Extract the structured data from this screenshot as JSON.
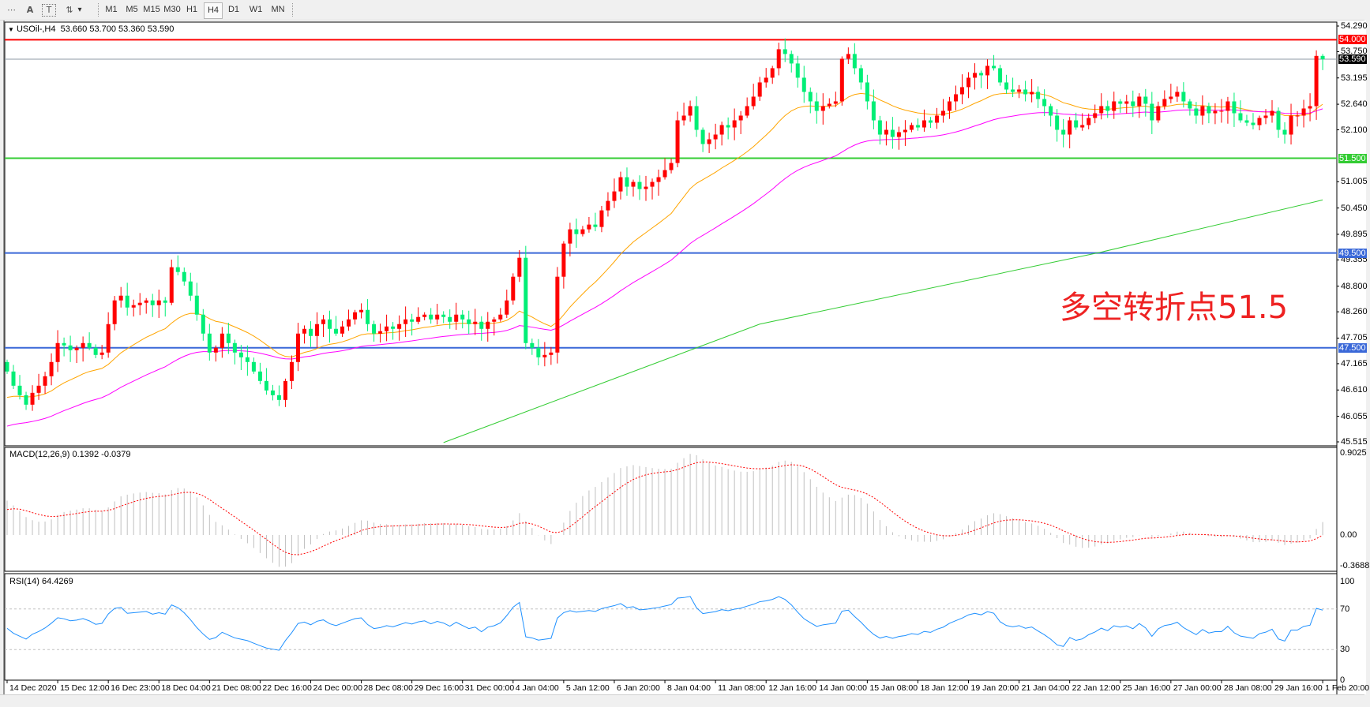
{
  "toolbar": {
    "tools": [
      {
        "name": "grid-icon",
        "glyph": "⋯"
      },
      {
        "name": "text-icon",
        "glyph": "A"
      },
      {
        "name": "text-label-icon",
        "glyph": "T"
      },
      {
        "name": "arrows-icon",
        "glyph": "⇅"
      }
    ],
    "dropdown_glyph": "▾",
    "timeframes": [
      "M1",
      "M5",
      "M15",
      "M30",
      "H1",
      "H4",
      "D1",
      "W1",
      "MN"
    ],
    "active_timeframe": "H4"
  },
  "chart": {
    "menu_glyph": "▼",
    "symbol": "USOil-,H4",
    "ohlc_text": "53.660 53.700 53.360 53.590",
    "annotation": "多空转折点51.5"
  },
  "chart_data": [
    {
      "type": "candlestick",
      "symbol": "USOil-",
      "timeframe": "H4",
      "last_bar": {
        "open": 53.66,
        "high": 53.7,
        "low": 53.36,
        "close": 53.59
      },
      "first_open": 47.2,
      "close": [
        47.0,
        46.7,
        46.5,
        46.3,
        46.55,
        46.7,
        46.9,
        47.2,
        47.6,
        47.55,
        47.45,
        47.5,
        47.6,
        47.5,
        47.35,
        47.4,
        48.0,
        48.5,
        48.6,
        48.35,
        48.4,
        48.45,
        48.5,
        48.4,
        48.5,
        48.45,
        49.2,
        49.1,
        48.9,
        48.6,
        48.2,
        47.8,
        47.4,
        47.5,
        47.8,
        47.6,
        47.4,
        47.3,
        47.2,
        47.0,
        46.8,
        46.6,
        46.5,
        46.4,
        46.8,
        47.2,
        47.8,
        47.9,
        47.75,
        48.0,
        48.1,
        47.9,
        47.8,
        47.95,
        48.1,
        48.25,
        48.3,
        48.0,
        47.8,
        47.85,
        47.95,
        47.9,
        48.0,
        48.1,
        48.05,
        48.15,
        48.2,
        48.1,
        48.2,
        48.15,
        48.05,
        48.2,
        48.1,
        48.0,
        48.05,
        47.9,
        48.05,
        48.1,
        48.2,
        48.5,
        49.0,
        49.4,
        47.6,
        47.5,
        47.3,
        47.35,
        47.4,
        49.0,
        49.7,
        50.0,
        49.9,
        50.0,
        50.1,
        50.05,
        50.4,
        50.6,
        50.8,
        51.1,
        50.9,
        51.0,
        50.85,
        50.9,
        51.0,
        51.1,
        51.25,
        51.4,
        52.3,
        52.4,
        52.6,
        52.1,
        51.8,
        51.9,
        52.0,
        52.2,
        52.15,
        52.3,
        52.4,
        52.6,
        52.8,
        53.1,
        53.2,
        53.4,
        53.8,
        53.7,
        53.5,
        53.2,
        52.9,
        52.7,
        52.5,
        52.6,
        52.65,
        52.7,
        53.6,
        53.7,
        53.4,
        53.1,
        52.7,
        52.3,
        52.0,
        52.1,
        51.95,
        52.05,
        52.1,
        52.2,
        52.15,
        52.3,
        52.25,
        52.4,
        52.5,
        52.7,
        52.85,
        53.0,
        53.2,
        53.3,
        53.25,
        53.45,
        53.4,
        53.1,
        52.95,
        52.9,
        52.95,
        52.85,
        52.9,
        52.75,
        52.6,
        52.4,
        52.1,
        52.0,
        52.3,
        52.15,
        52.2,
        52.35,
        52.45,
        52.6,
        52.5,
        52.7,
        52.65,
        52.7,
        52.6,
        52.8,
        52.65,
        52.3,
        52.6,
        52.75,
        52.8,
        52.9,
        52.7,
        52.55,
        52.4,
        52.6,
        52.45,
        52.5,
        52.5,
        52.7,
        52.45,
        52.3,
        52.25,
        52.2,
        52.35,
        52.4,
        52.5,
        52.1,
        52.0,
        52.4,
        52.4,
        52.55,
        52.6,
        53.66,
        53.59
      ],
      "ma_long_points": [
        [
          69,
          45.5
        ],
        [
          119,
          48.0
        ],
        [
          173,
          49.52
        ],
        [
          208,
          50.62
        ]
      ],
      "ylim": [
        45.515,
        54.29
      ],
      "y_tick_labels": [
        "54.290",
        "53.750",
        "53.195",
        "52.640",
        "52.100",
        "51.005",
        "50.450",
        "49.895",
        "49.355",
        "48.800",
        "48.260",
        "47.705",
        "47.165",
        "46.610",
        "46.055",
        "45.515"
      ],
      "x_tick_labels": [
        "14 Dec 2020",
        "15 Dec 12:00",
        "16 Dec 23:00",
        "18 Dec 04:00",
        "21 Dec 08:00",
        "22 Dec 16:00",
        "24 Dec 00:00",
        "28 Dec 08:00",
        "29 Dec 16:00",
        "31 Dec 00:00",
        "4 Jan 04:00",
        "5 Jan 12:00",
        "6 Jan 20:00",
        "8 Jan 04:00",
        "11 Jan 08:00",
        "12 Jan 16:00",
        "14 Jan 00:00",
        "15 Jan 08:00",
        "18 Jan 12:00",
        "19 Jan 20:00",
        "21 Jan 04:00",
        "22 Jan 12:00",
        "25 Jan 16:00",
        "27 Jan 00:00",
        "28 Jan 08:00",
        "29 Jan 16:00",
        "1 Feb 20:00"
      ],
      "hlines": [
        {
          "value": 54.0,
          "label": "54.000",
          "color": "#ff0000"
        },
        {
          "value": 53.59,
          "label": "53.590",
          "color": "#8c9aa6",
          "label_bg": "#000000"
        },
        {
          "value": 51.5,
          "label": "51.500",
          "color": "#33cc33"
        },
        {
          "value": 49.5,
          "label": "49.500",
          "color": "#3a68d8"
        },
        {
          "value": 47.5,
          "label": "47.500",
          "color": "#3a68d8"
        }
      ],
      "colors": {
        "bull": "#ff0000",
        "bear": "#00ee76",
        "ma_fast": "#ffa500",
        "ma_mid": "#ff00ff",
        "ma_long": "#33cc33"
      }
    },
    {
      "type": "bar",
      "title": "MACD(12,26,9) 0.1392 -0.0379",
      "ylim": [
        -0.3688,
        0.9025
      ],
      "y_tick_labels": [
        {
          "value": 0.9025,
          "label": "0.9025"
        },
        {
          "value": 0,
          "label": "0.00"
        },
        {
          "value": -0.3688,
          "label": "-0.3688"
        }
      ],
      "colors": {
        "histogram": "#c0c0c0",
        "signal": "#ff0000"
      }
    },
    {
      "type": "line",
      "title": "RSI(14) 64.4269",
      "ylim": [
        0,
        100
      ],
      "levels": [
        70,
        30
      ],
      "y_tick_labels": [
        {
          "value": 100,
          "label": "100"
        },
        {
          "value": 70,
          "label": "70"
        },
        {
          "value": 30,
          "label": "30"
        },
        {
          "value": 0,
          "label": "0"
        }
      ],
      "colors": {
        "line": "#1e90ff"
      }
    }
  ]
}
